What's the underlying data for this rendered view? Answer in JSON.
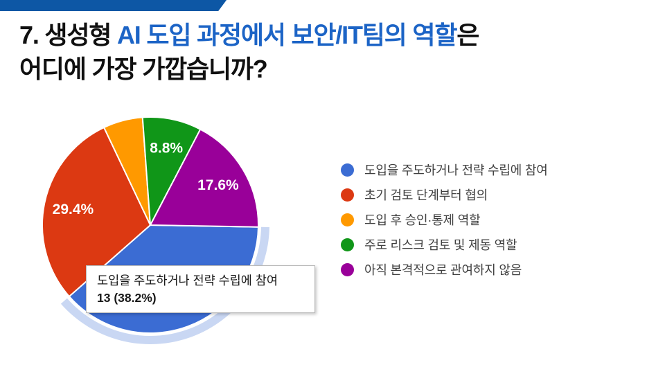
{
  "slide": {
    "top_bar_color": "#0d57a5",
    "title_prefix": "7.  생성형 ",
    "title_highlight": "AI 도입 과정에서 보안/IT팀의 역할",
    "title_highlight_color": "#1c64c6",
    "title_suffix": "은",
    "title_line2": "어디에 가장 가깝습니까?"
  },
  "chart_data": {
    "type": "pie",
    "title": "",
    "legend_position": "right",
    "start_angle_deg": 91,
    "center_x": 217,
    "center_y": 325,
    "radius": 156,
    "slice_border_color": "#ffffff",
    "slice_label_color": "#ffffff",
    "highlight_halo_color": "#c9d7f3",
    "series": [
      {
        "label": "도입을 주도하거나 전략 수립에 참여",
        "percent": 38.2,
        "color": "#3b6cd3",
        "slice_label": "38.2%",
        "show_label": true,
        "highlighted": true
      },
      {
        "label": "초기 검토 단계부터 협의",
        "percent": 29.4,
        "color": "#dc3912",
        "slice_label": "29.4%",
        "show_label": true,
        "highlighted": false
      },
      {
        "label": "도입 후 승인·통제 역할",
        "percent": 5.9,
        "color": "#ff9900",
        "slice_label": "5.9%",
        "show_label": false,
        "highlighted": false
      },
      {
        "label": "주로 리스크 검토 및 제동 역할",
        "percent": 8.8,
        "color": "#109618",
        "slice_label": "8.8%",
        "show_label": true,
        "highlighted": false
      },
      {
        "label": "아직 본격적으로 관여하지 않음",
        "percent": 17.6,
        "color": "#990099",
        "slice_label": "17.6%",
        "show_label": true,
        "highlighted": false
      }
    ]
  },
  "tooltip": {
    "line1": "도입을 주도하거나 전략 수립에 참여",
    "line2": "13 (38.2%)"
  }
}
